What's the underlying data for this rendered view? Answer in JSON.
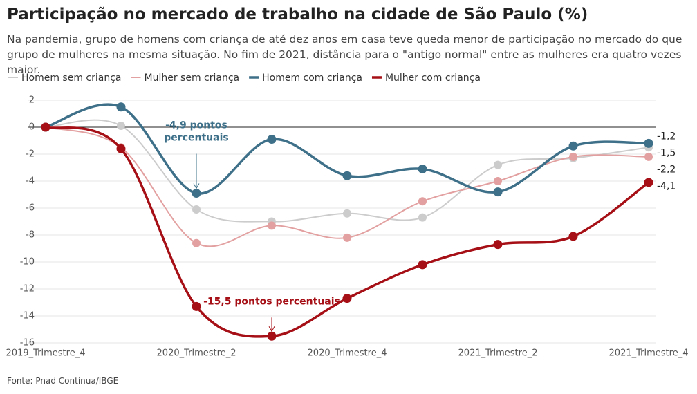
{
  "chart_data": {
    "type": "line",
    "title": "Participação no mercado de trabalho na cidade de São Paulo (%)",
    "subtitle": "Na pandemia, grupo de homens com criança de até dez anos em casa teve queda menor de participação no mercado do que grupo de mulheres na mesma situação. No fim de 2021, distância para o \"antigo normal\" entre as mulheres era quatro vezes maior.",
    "source": "Fonte: Pnad Contínua/IBGE",
    "categories": [
      "2019_Trimestre_4",
      null,
      "2020_Trimestre_2",
      null,
      "2020_Trimestre_4",
      null,
      "2021_Trimestre_2",
      null,
      "2021_Trimestre_4"
    ],
    "ylim": [
      -16,
      2
    ],
    "yticks": [
      2,
      0,
      -2,
      -4,
      -6,
      -8,
      -10,
      -12,
      -14,
      -16
    ],
    "grid": true,
    "series": [
      {
        "name": "Homem sem criança",
        "color": "#cccccc",
        "values": [
          0,
          0.1,
          -6.1,
          -7.0,
          -6.4,
          -6.7,
          -2.8,
          -2.3,
          -1.5
        ],
        "value_labels": [
          null,
          null,
          null,
          null,
          null,
          null,
          null,
          null,
          "-1,5"
        ]
      },
      {
        "name": "Mulher sem criança",
        "color": "#e3a0a0",
        "values": [
          0,
          -1.5,
          -8.6,
          -7.3,
          -8.2,
          -5.5,
          -4.0,
          -2.2,
          -2.2
        ],
        "value_labels": [
          null,
          null,
          null,
          null,
          null,
          null,
          null,
          null,
          "-2,2"
        ]
      },
      {
        "name": "Homem com criança",
        "color": "#3e7089",
        "values": [
          0,
          1.5,
          -4.9,
          -0.9,
          -3.6,
          -3.1,
          -4.8,
          -1.4,
          -1.2
        ],
        "value_labels": [
          null,
          null,
          null,
          null,
          null,
          null,
          null,
          null,
          "-1,2"
        ]
      },
      {
        "name": "Mulher com criança",
        "color": "#a50f15",
        "values": [
          0,
          -1.6,
          -13.3,
          -15.5,
          -12.7,
          -10.2,
          -8.7,
          -8.1,
          -4.1
        ],
        "value_labels": [
          null,
          null,
          null,
          null,
          null,
          null,
          null,
          null,
          "-4,1"
        ]
      }
    ],
    "annotations": [
      {
        "lines": [
          "-4,9 pontos",
          "percentuais"
        ],
        "series": 2,
        "index": 2
      },
      {
        "lines": [
          "-15,5 pontos percentuais"
        ],
        "series": 3,
        "index": 3
      }
    ]
  }
}
